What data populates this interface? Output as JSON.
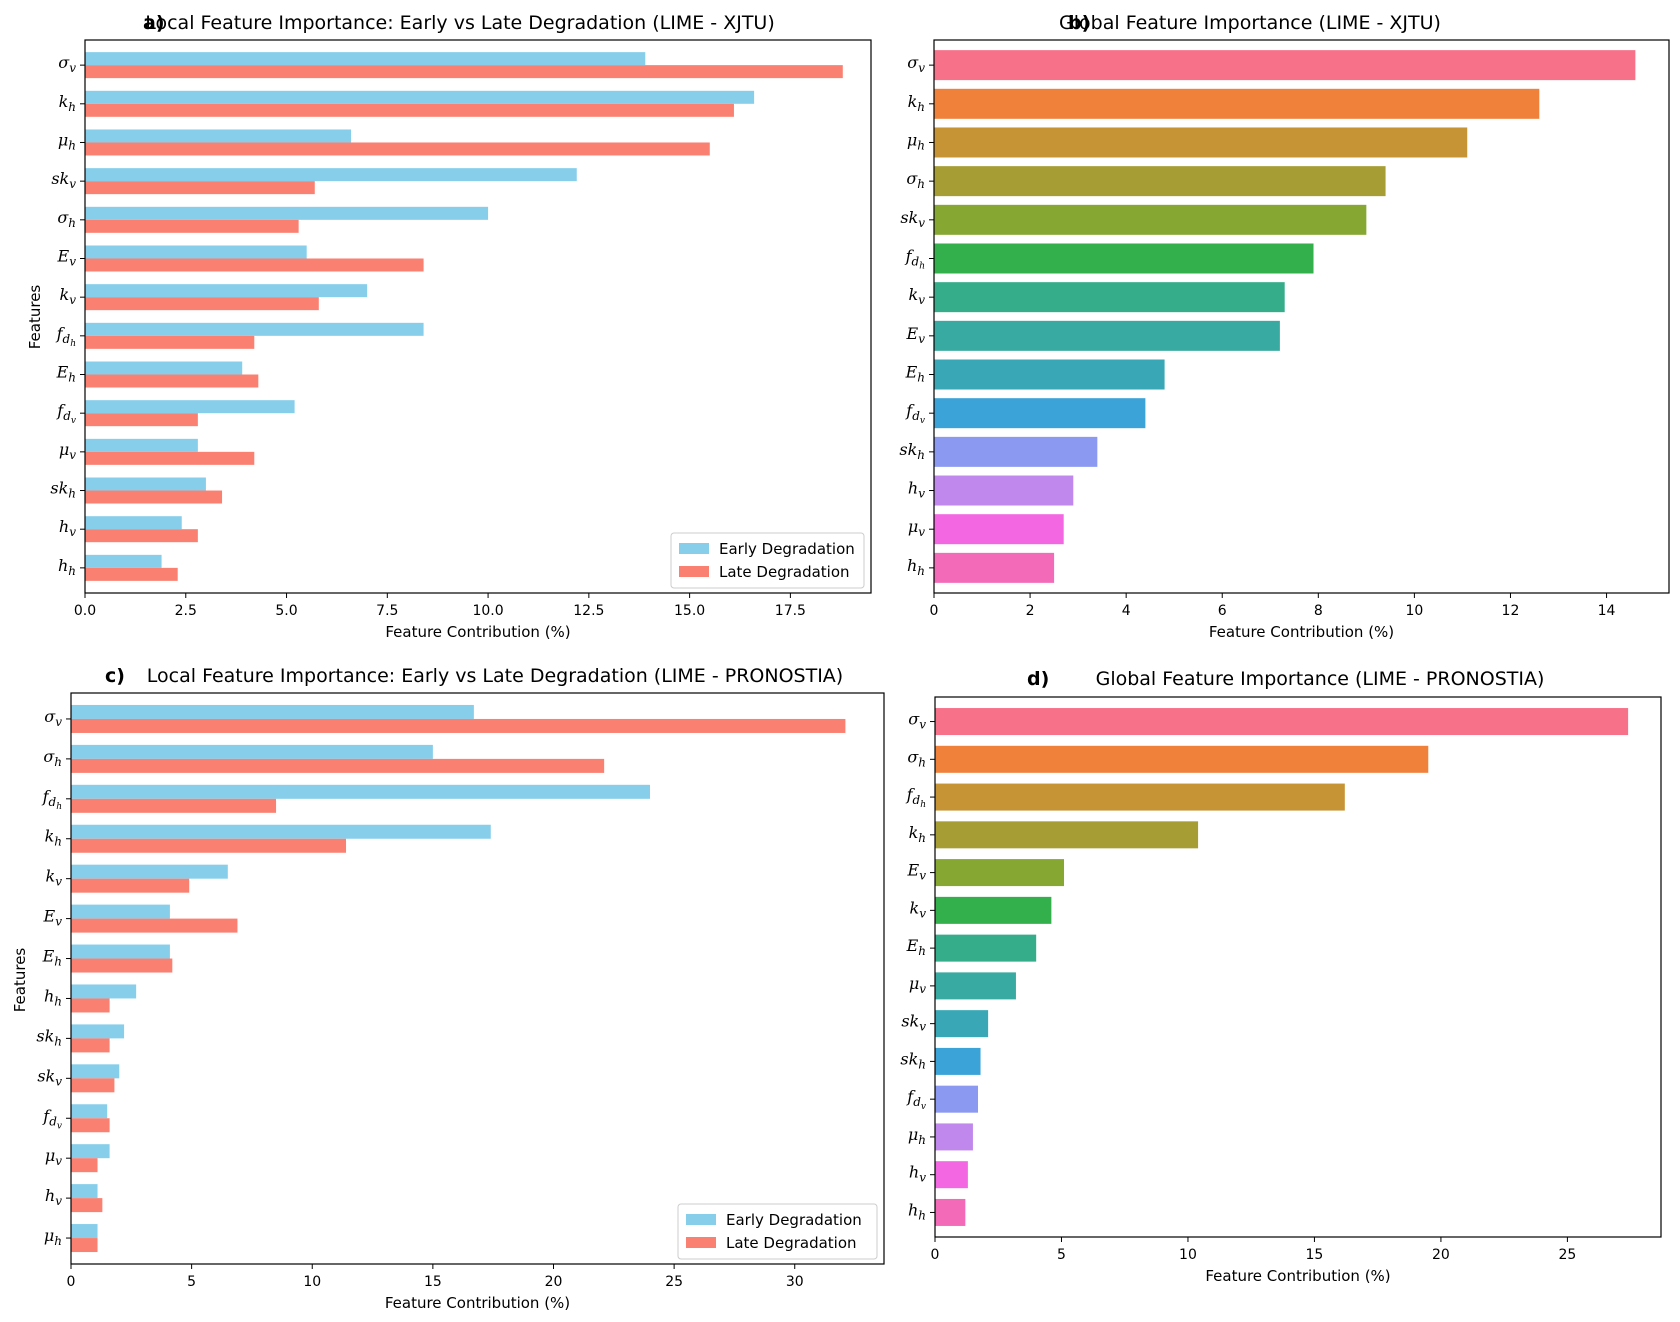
{
  "colors": {
    "early": "#87CEEB",
    "late": "#FA8072",
    "palette": [
      "#F77189",
      "#F0813A",
      "#C69335",
      "#A69D34",
      "#86A833",
      "#33B04B",
      "#36AD8A",
      "#38AAA1",
      "#39A7B5",
      "#3BA3D8",
      "#8B99F0",
      "#C088EC",
      "#F467E3",
      "#F36BB8"
    ]
  },
  "chart_data": [
    {
      "id": "a",
      "type": "bar",
      "orientation": "horizontal",
      "panel_label": "a)",
      "title": "Local Feature Importance: Early vs Late Degradation (LIME - XJTU)",
      "xlabel": "Feature Contribution (%)",
      "ylabel": "Features",
      "xlim": [
        0,
        19.5
      ],
      "xticks": [
        0.0,
        2.5,
        5.0,
        7.5,
        10.0,
        12.5,
        15.0,
        17.5
      ],
      "xtick_labels": [
        "0.0",
        "2.5",
        "5.0",
        "7.5",
        "10.0",
        "12.5",
        "15.0",
        "17.5"
      ],
      "categories": [
        {
          "base": "σ",
          "sub": "v"
        },
        {
          "base": "k",
          "sub": "h"
        },
        {
          "base": "μ",
          "sub": "h"
        },
        {
          "base": "sk",
          "sub": "v"
        },
        {
          "base": "σ",
          "sub": "h"
        },
        {
          "base": "E",
          "sub": "v"
        },
        {
          "base": "k",
          "sub": "v"
        },
        {
          "base": "f",
          "sub": "d",
          "subsub": "h"
        },
        {
          "base": "E",
          "sub": "h"
        },
        {
          "base": "f",
          "sub": "d",
          "subsub": "v"
        },
        {
          "base": "μ",
          "sub": "v"
        },
        {
          "base": "sk",
          "sub": "h"
        },
        {
          "base": "h",
          "sub": "v"
        },
        {
          "base": "h",
          "sub": "h"
        }
      ],
      "series": [
        {
          "name": "Early Degradation",
          "values": [
            13.9,
            16.6,
            6.6,
            12.2,
            10.0,
            5.5,
            7.0,
            8.4,
            3.9,
            5.2,
            2.8,
            3.0,
            2.4,
            1.9
          ]
        },
        {
          "name": "Late Degradation",
          "values": [
            18.8,
            16.1,
            15.5,
            5.7,
            5.3,
            8.4,
            5.8,
            4.2,
            4.3,
            2.8,
            4.2,
            3.4,
            2.8,
            2.3
          ]
        }
      ],
      "legend": "lower-right"
    },
    {
      "id": "b",
      "type": "bar",
      "orientation": "horizontal",
      "panel_label": "b)",
      "title": "Global Feature Importance (LIME - XJTU)",
      "xlabel": "Feature Contribution (%)",
      "xlim": [
        0,
        15.3
      ],
      "xticks": [
        0,
        2,
        4,
        6,
        8,
        10,
        12,
        14
      ],
      "xtick_labels": [
        "0",
        "2",
        "4",
        "6",
        "8",
        "10",
        "12",
        "14"
      ],
      "categories": [
        {
          "base": "σ",
          "sub": "v"
        },
        {
          "base": "k",
          "sub": "h"
        },
        {
          "base": "μ",
          "sub": "h"
        },
        {
          "base": "σ",
          "sub": "h"
        },
        {
          "base": "sk",
          "sub": "v"
        },
        {
          "base": "f",
          "sub": "d",
          "subsub": "h"
        },
        {
          "base": "k",
          "sub": "v"
        },
        {
          "base": "E",
          "sub": "v"
        },
        {
          "base": "E",
          "sub": "h"
        },
        {
          "base": "f",
          "sub": "d",
          "subsub": "v"
        },
        {
          "base": "sk",
          "sub": "h"
        },
        {
          "base": "h",
          "sub": "v"
        },
        {
          "base": "μ",
          "sub": "v"
        },
        {
          "base": "h",
          "sub": "h"
        }
      ],
      "values": [
        14.6,
        12.6,
        11.1,
        9.4,
        9.0,
        7.9,
        7.3,
        7.2,
        4.8,
        4.4,
        3.4,
        2.9,
        2.7,
        2.5
      ]
    },
    {
      "id": "c",
      "type": "bar",
      "orientation": "horizontal",
      "panel_label": "c)",
      "title": "Local Feature Importance: Early vs Late Degradation (LIME - PRONOSTIA)",
      "xlabel": "Feature Contribution (%)",
      "ylabel": "Features",
      "xlim": [
        0,
        33.7
      ],
      "xticks": [
        0,
        5,
        10,
        15,
        20,
        25,
        30
      ],
      "xtick_labels": [
        "0",
        "5",
        "10",
        "15",
        "20",
        "25",
        "30"
      ],
      "categories": [
        {
          "base": "σ",
          "sub": "v"
        },
        {
          "base": "σ",
          "sub": "h"
        },
        {
          "base": "f",
          "sub": "d",
          "subsub": "h"
        },
        {
          "base": "k",
          "sub": "h"
        },
        {
          "base": "k",
          "sub": "v"
        },
        {
          "base": "E",
          "sub": "v"
        },
        {
          "base": "E",
          "sub": "h"
        },
        {
          "base": "h",
          "sub": "h"
        },
        {
          "base": "sk",
          "sub": "h"
        },
        {
          "base": "sk",
          "sub": "v"
        },
        {
          "base": "f",
          "sub": "d",
          "subsub": "v"
        },
        {
          "base": "μ",
          "sub": "v"
        },
        {
          "base": "h",
          "sub": "v"
        },
        {
          "base": "μ",
          "sub": "h"
        }
      ],
      "series": [
        {
          "name": "Early Degradation",
          "values": [
            16.7,
            15.0,
            24.0,
            17.4,
            6.5,
            4.1,
            4.1,
            2.7,
            2.2,
            2.0,
            1.5,
            1.6,
            1.1,
            1.1
          ]
        },
        {
          "name": "Late Degradation",
          "values": [
            32.1,
            22.1,
            8.5,
            11.4,
            4.9,
            6.9,
            4.2,
            1.6,
            1.6,
            1.8,
            1.6,
            1.1,
            1.3,
            1.1
          ]
        }
      ],
      "legend": "lower-right"
    },
    {
      "id": "d",
      "type": "bar",
      "orientation": "horizontal",
      "panel_label": "d)",
      "title": "Global Feature Importance (LIME - PRONOSTIA)",
      "xlabel": "Feature Contribution (%)",
      "xlim": [
        0,
        28.7
      ],
      "xticks": [
        0,
        5,
        10,
        15,
        20,
        25
      ],
      "xtick_labels": [
        "0",
        "5",
        "10",
        "15",
        "20",
        "25"
      ],
      "categories": [
        {
          "base": "σ",
          "sub": "v"
        },
        {
          "base": "σ",
          "sub": "h"
        },
        {
          "base": "f",
          "sub": "d",
          "subsub": "h"
        },
        {
          "base": "k",
          "sub": "h"
        },
        {
          "base": "E",
          "sub": "v"
        },
        {
          "base": "k",
          "sub": "v"
        },
        {
          "base": "E",
          "sub": "h"
        },
        {
          "base": "μ",
          "sub": "v"
        },
        {
          "base": "sk",
          "sub": "v"
        },
        {
          "base": "sk",
          "sub": "h"
        },
        {
          "base": "f",
          "sub": "d",
          "subsub": "v"
        },
        {
          "base": "μ",
          "sub": "h"
        },
        {
          "base": "h",
          "sub": "v"
        },
        {
          "base": "h",
          "sub": "h"
        }
      ],
      "values": [
        27.4,
        19.5,
        16.2,
        10.4,
        5.1,
        4.6,
        4.0,
        3.2,
        2.1,
        1.8,
        1.7,
        1.5,
        1.3,
        1.2
      ]
    }
  ]
}
